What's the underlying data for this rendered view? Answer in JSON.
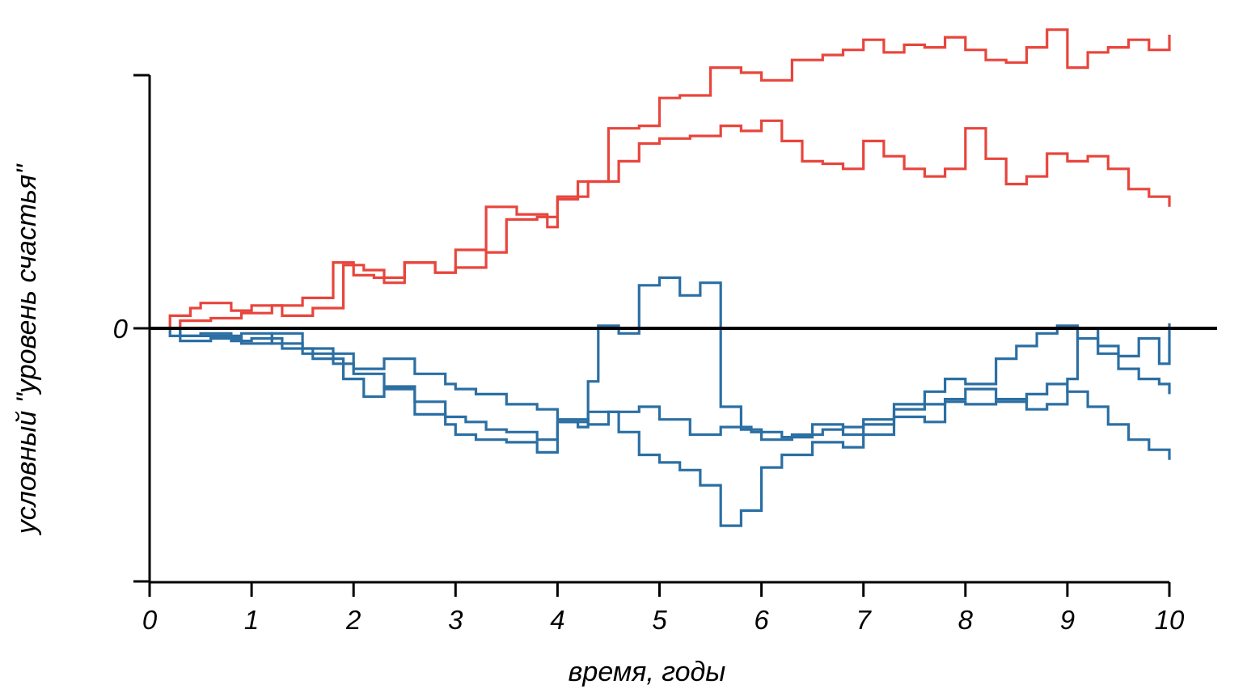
{
  "chart_data": {
    "type": "line",
    "title": "",
    "xlabel": "время, годы",
    "ylabel": "условный \"уровень счастья\"",
    "xlim": [
      0,
      10
    ],
    "ylim": [
      -1,
      1
    ],
    "x_ticks": [
      0,
      1,
      2,
      3,
      4,
      5,
      6,
      7,
      8,
      9,
      10
    ],
    "x_tick_labels": [
      "0",
      "1",
      "2",
      "3",
      "4",
      "5",
      "6",
      "7",
      "8",
      "9",
      "10"
    ],
    "y_tick_labels": [
      "",
      "0",
      ""
    ],
    "y_ticks": [
      -1,
      0,
      1
    ],
    "reference_line_y": 0,
    "legend": "none",
    "grid": false,
    "colors": {
      "positive": "#e8453c",
      "negative": "#2b6fa3",
      "axis": "#000000"
    },
    "series": [
      {
        "x": [
          0,
          0.2,
          0.4,
          0.5,
          0.8,
          1.0,
          1.3,
          1.6,
          1.9,
          2.1,
          2.3,
          2.5,
          2.8,
          3.0,
          3.3,
          3.6,
          3.9,
          4.0,
          4.2,
          4.5,
          4.8,
          5.0,
          5.2,
          5.5,
          5.8,
          6.0,
          6.3,
          6.6,
          6.8,
          7.0,
          7.2,
          7.4,
          7.6,
          7.8,
          8.0,
          8.2,
          8.4,
          8.6,
          8.8,
          9.0,
          9.2,
          9.4,
          9.6,
          9.8,
          10.0
        ],
        "y": [
          0,
          0.05,
          0.08,
          0.1,
          0.07,
          0.09,
          0.05,
          0.08,
          0.25,
          0.23,
          0.18,
          0.26,
          0.22,
          0.31,
          0.48,
          0.45,
          0.4,
          0.51,
          0.58,
          0.79,
          0.8,
          0.91,
          0.92,
          1.03,
          1.01,
          0.98,
          1.06,
          1.08,
          1.1,
          1.14,
          1.09,
          1.12,
          1.11,
          1.15,
          1.1,
          1.06,
          1.05,
          1.11,
          1.18,
          1.03,
          1.09,
          1.11,
          1.14,
          1.1,
          1.16
        ]
      },
      {
        "x": [
          0,
          0.3,
          0.6,
          0.9,
          1.2,
          1.5,
          1.8,
          2.0,
          2.2,
          2.5,
          2.8,
          3.0,
          3.3,
          3.5,
          3.8,
          4.0,
          4.3,
          4.6,
          4.8,
          5.0,
          5.3,
          5.6,
          5.8,
          6.0,
          6.2,
          6.4,
          6.6,
          6.8,
          7.0,
          7.2,
          7.4,
          7.6,
          7.8,
          8.0,
          8.2,
          8.4,
          8.6,
          8.8,
          9.0,
          9.2,
          9.4,
          9.6,
          9.8,
          10.0
        ],
        "y": [
          0,
          0.03,
          0.04,
          0.06,
          0.09,
          0.12,
          0.26,
          0.21,
          0.2,
          0.26,
          0.22,
          0.24,
          0.3,
          0.43,
          0.44,
          0.52,
          0.58,
          0.66,
          0.73,
          0.75,
          0.76,
          0.8,
          0.78,
          0.82,
          0.74,
          0.66,
          0.65,
          0.63,
          0.74,
          0.68,
          0.63,
          0.6,
          0.63,
          0.79,
          0.67,
          0.57,
          0.6,
          0.69,
          0.66,
          0.68,
          0.63,
          0.55,
          0.52,
          0.48
        ]
      },
      {
        "x": [
          0,
          0.2,
          0.5,
          0.8,
          1.0,
          1.3,
          1.6,
          1.9,
          2.1,
          2.3,
          2.6,
          2.9,
          3.1,
          3.3,
          3.5,
          3.8,
          4.0,
          4.2,
          4.3,
          4.4,
          4.6,
          4.8,
          5.0,
          5.2,
          5.4,
          5.6,
          5.8,
          6.0,
          6.3,
          6.6,
          6.8,
          7.0,
          7.3,
          7.6,
          7.8,
          8.0,
          8.3,
          8.5,
          8.7,
          8.9,
          9.1,
          9.3,
          9.5,
          9.7,
          9.9,
          10.0
        ],
        "y": [
          0,
          -0.03,
          -0.02,
          -0.05,
          -0.04,
          -0.08,
          -0.12,
          -0.2,
          -0.27,
          -0.23,
          -0.29,
          -0.35,
          -0.37,
          -0.4,
          -0.41,
          -0.44,
          -0.37,
          -0.39,
          -0.21,
          0.01,
          -0.02,
          0.17,
          0.2,
          0.13,
          0.18,
          -0.31,
          -0.4,
          -0.44,
          -0.42,
          -0.4,
          -0.39,
          -0.36,
          -0.3,
          -0.25,
          -0.2,
          -0.22,
          -0.12,
          -0.07,
          -0.02,
          0.01,
          -0.04,
          -0.1,
          -0.16,
          -0.2,
          -0.22,
          -0.26
        ]
      },
      {
        "x": [
          0,
          0.3,
          0.6,
          0.9,
          1.2,
          1.5,
          1.8,
          2.0,
          2.3,
          2.6,
          2.9,
          3.0,
          3.2,
          3.5,
          3.8,
          4.0,
          4.3,
          4.6,
          4.8,
          5.0,
          5.2,
          5.4,
          5.6,
          5.8,
          6.0,
          6.2,
          6.5,
          6.8,
          7.0,
          7.3,
          7.6,
          7.8,
          8.0,
          8.3,
          8.6,
          8.8,
          9.0,
          9.2,
          9.4,
          9.6,
          9.8,
          10.0
        ],
        "y": [
          0,
          -0.03,
          -0.04,
          -0.02,
          -0.06,
          -0.1,
          -0.14,
          -0.18,
          -0.24,
          -0.34,
          -0.38,
          -0.42,
          -0.44,
          -0.45,
          -0.49,
          -0.37,
          -0.33,
          -0.41,
          -0.5,
          -0.53,
          -0.56,
          -0.62,
          -0.78,
          -0.72,
          -0.55,
          -0.5,
          -0.45,
          -0.47,
          -0.42,
          -0.32,
          -0.3,
          -0.28,
          -0.24,
          -0.29,
          -0.26,
          -0.22,
          -0.25,
          -0.31,
          -0.38,
          -0.44,
          -0.48,
          -0.52
        ]
      },
      {
        "x": [
          0,
          0.3,
          0.6,
          0.9,
          1.2,
          1.5,
          1.8,
          2.0,
          2.3,
          2.6,
          2.9,
          3.0,
          3.2,
          3.5,
          3.8,
          4.0,
          4.3,
          4.5,
          4.8,
          5.0,
          5.3,
          5.6,
          5.9,
          6.2,
          6.5,
          6.8,
          7.0,
          7.3,
          7.6,
          7.8,
          8.0,
          8.3,
          8.6,
          8.8,
          9.0,
          9.1,
          9.3,
          9.5,
          9.7,
          9.9,
          10.0
        ],
        "y": [
          0,
          -0.05,
          -0.03,
          -0.06,
          -0.02,
          -0.08,
          -0.1,
          -0.16,
          -0.12,
          -0.18,
          -0.22,
          -0.24,
          -0.26,
          -0.3,
          -0.32,
          -0.36,
          -0.38,
          -0.33,
          -0.31,
          -0.36,
          -0.42,
          -0.39,
          -0.41,
          -0.43,
          -0.38,
          -0.42,
          -0.38,
          -0.35,
          -0.37,
          -0.29,
          -0.3,
          -0.28,
          -0.32,
          -0.3,
          -0.2,
          0.0,
          -0.07,
          -0.11,
          -0.04,
          -0.14,
          0.02
        ]
      }
    ],
    "series_colors": [
      "positive",
      "positive",
      "negative",
      "negative",
      "negative"
    ]
  }
}
